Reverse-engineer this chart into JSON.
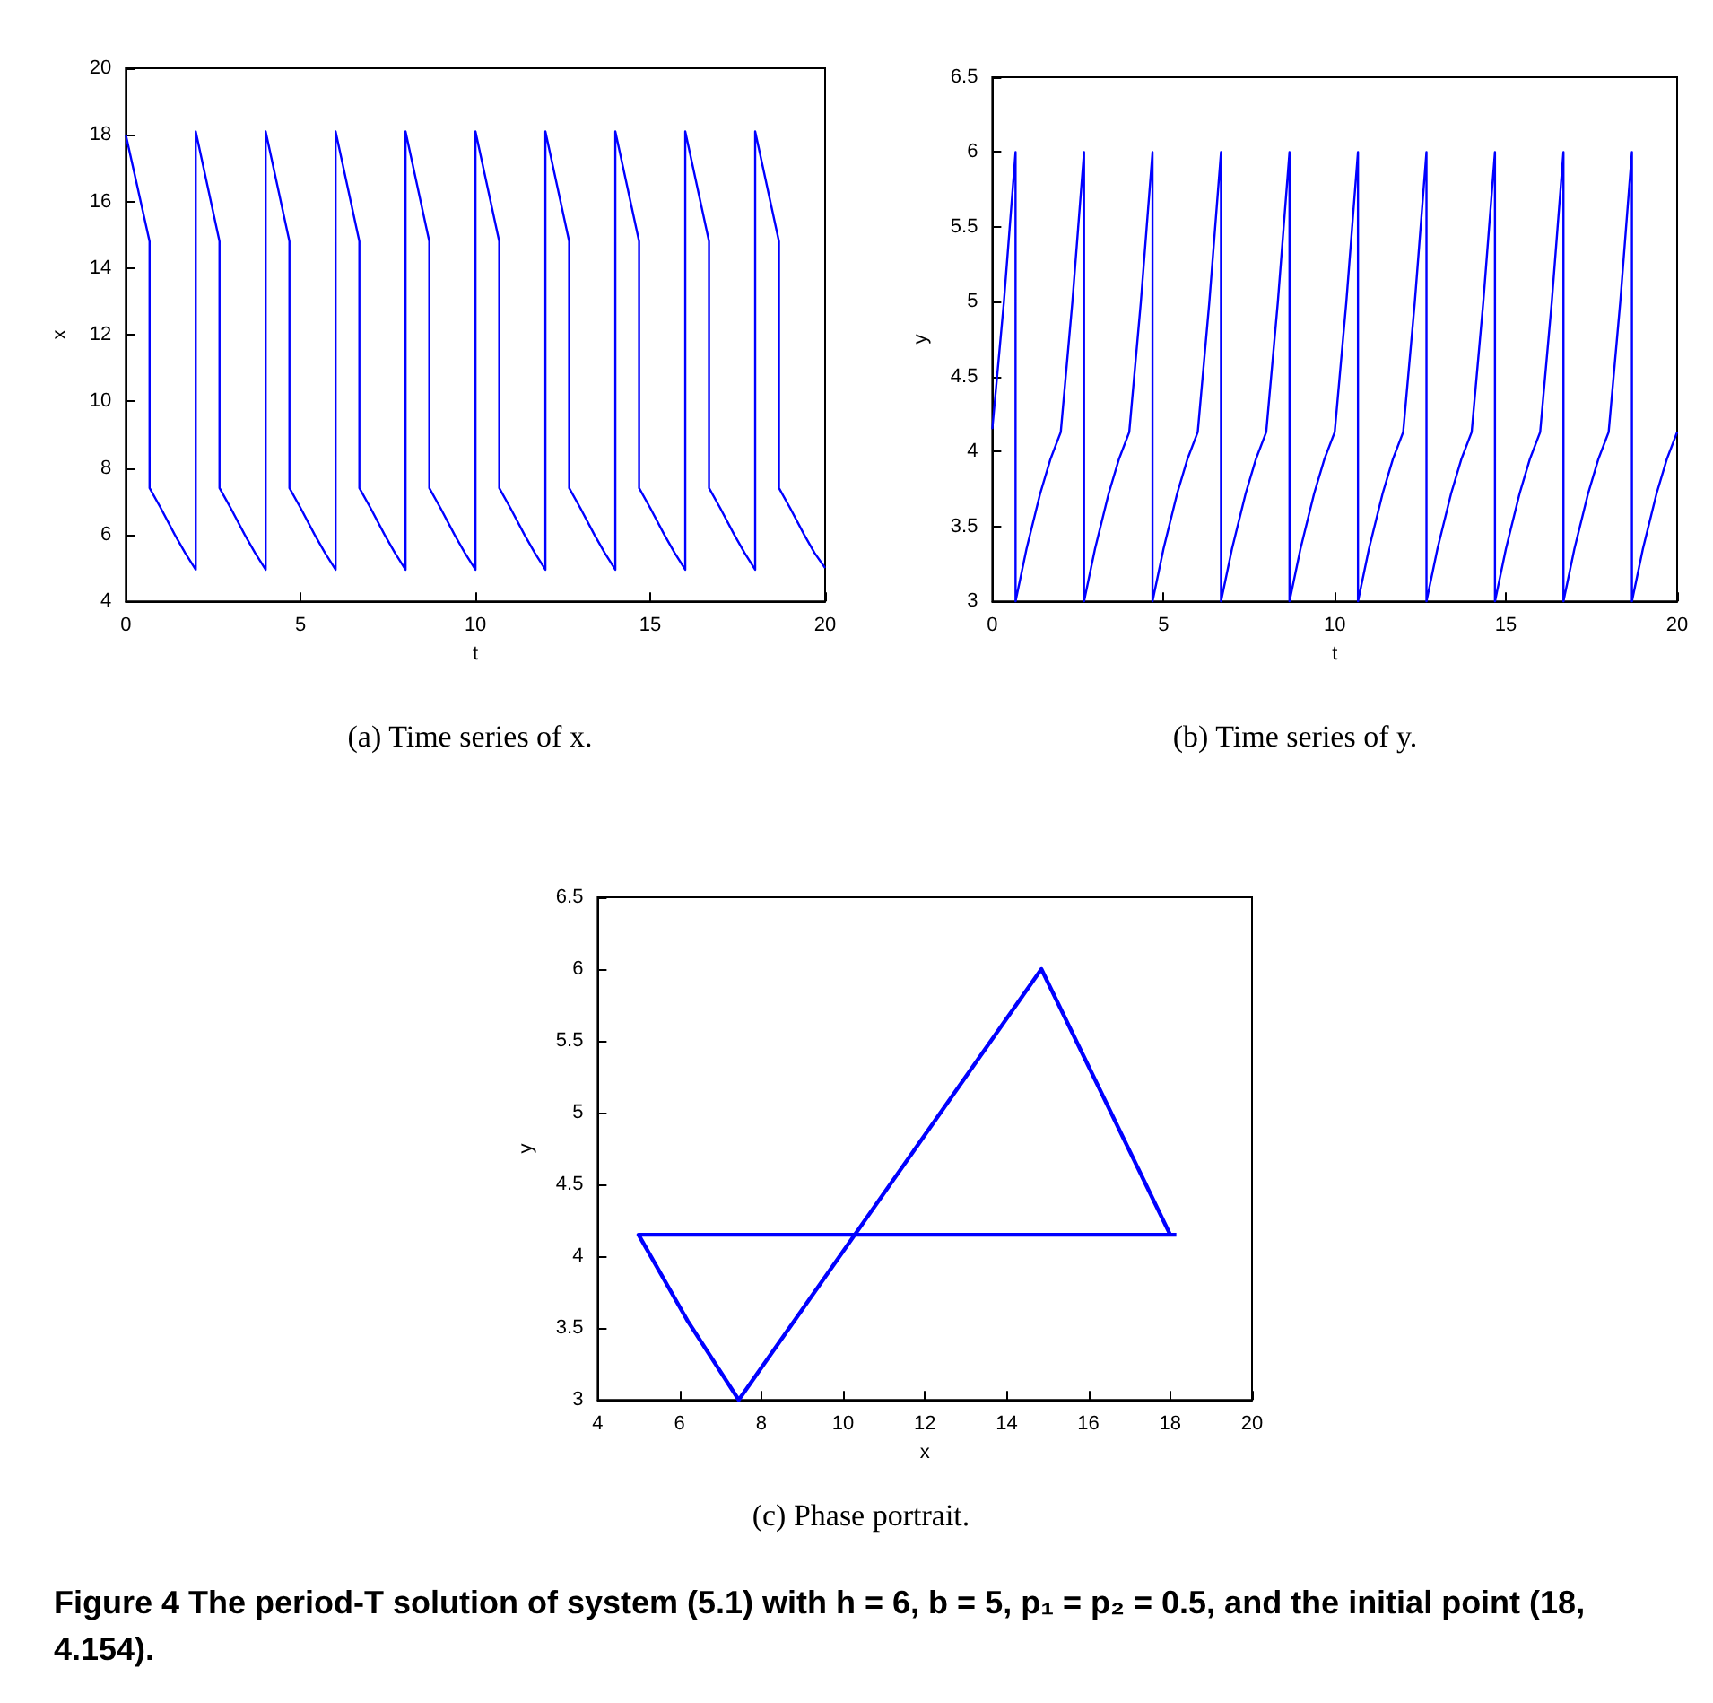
{
  "chart_data": [
    {
      "type": "line",
      "xlabel": "t",
      "ylabel": "x",
      "annotations": [
        "(a) Time series of x."
      ],
      "xlim": [
        0,
        20
      ],
      "xticks": [
        0,
        5,
        10,
        15,
        20
      ],
      "ylim": [
        4,
        20
      ],
      "yticks": [
        4,
        6,
        8,
        10,
        12,
        14,
        16,
        18,
        20
      ],
      "marker": "none",
      "line_style": "solid",
      "x": [
        0,
        0.68,
        0.68,
        1,
        1.4,
        1.7,
        2,
        2,
        2.68,
        2.68,
        3,
        3.4,
        3.7,
        4,
        4,
        4.68,
        4.68,
        5,
        5.4,
        5.7,
        6,
        6,
        6.68,
        6.68,
        7,
        7.4,
        7.7,
        8,
        8,
        8.68,
        8.68,
        9,
        9.4,
        9.7,
        10,
        10,
        10.68,
        10.68,
        11,
        11.4,
        11.7,
        12,
        12,
        12.68,
        12.68,
        13,
        13.4,
        13.7,
        14,
        14,
        14.68,
        14.68,
        15,
        15.4,
        15.7,
        16,
        16,
        16.68,
        16.68,
        17,
        17.4,
        17.7,
        18,
        18,
        18.68,
        18.68,
        19,
        19.4,
        19.7,
        20
      ],
      "series": [
        {
          "color": "#0000ff",
          "values": [
            18,
            14.8,
            7.4,
            6.8,
            6.0,
            5.45,
            4.95,
            18.1,
            14.8,
            7.4,
            6.8,
            6.0,
            5.45,
            4.95,
            18.1,
            14.8,
            7.4,
            6.8,
            6.0,
            5.45,
            4.95,
            18.1,
            14.8,
            7.4,
            6.8,
            6.0,
            5.45,
            4.95,
            18.1,
            14.8,
            7.4,
            6.8,
            6.0,
            5.45,
            4.95,
            18.1,
            14.8,
            7.4,
            6.8,
            6.0,
            5.45,
            4.95,
            18.1,
            14.8,
            7.4,
            6.8,
            6.0,
            5.45,
            4.95,
            18.1,
            14.8,
            7.4,
            6.8,
            6.0,
            5.45,
            4.95,
            18.1,
            14.8,
            7.4,
            6.8,
            6.0,
            5.45,
            4.95,
            18.1,
            14.8,
            7.4,
            6.8,
            6.0,
            5.45,
            5.0
          ]
        }
      ]
    },
    {
      "type": "line",
      "xlabel": "t",
      "ylabel": "y",
      "annotations": [
        "(b) Time series of y."
      ],
      "xlim": [
        0,
        20
      ],
      "xticks": [
        0,
        5,
        10,
        15,
        20
      ],
      "ylim": [
        3,
        6.5
      ],
      "yticks": [
        3,
        3.5,
        4,
        4.5,
        5,
        5.5,
        6,
        6.5
      ],
      "marker": "none",
      "line_style": "solid",
      "x": [
        0,
        0.34,
        0.68,
        0.68,
        1,
        1.4,
        1.7,
        2,
        2.34,
        2.68,
        2.68,
        3,
        3.4,
        3.7,
        4,
        4.34,
        4.68,
        4.68,
        5,
        5.4,
        5.7,
        6,
        6.34,
        6.68,
        6.68,
        7,
        7.4,
        7.7,
        8,
        8.34,
        8.68,
        8.68,
        9,
        9.4,
        9.7,
        10,
        10.34,
        10.68,
        10.68,
        11,
        11.4,
        11.7,
        12,
        12.34,
        12.68,
        12.68,
        13,
        13.4,
        13.7,
        14,
        14.34,
        14.68,
        14.68,
        15,
        15.4,
        15.7,
        16,
        16.34,
        16.68,
        16.68,
        17,
        17.4,
        17.7,
        18,
        18.34,
        18.68,
        18.68,
        19,
        19.4,
        19.7,
        20
      ],
      "series": [
        {
          "color": "#0000ff",
          "values": [
            4.15,
            5,
            6,
            3,
            3.35,
            3.72,
            3.95,
            4.13,
            5,
            6,
            3,
            3.35,
            3.72,
            3.95,
            4.13,
            5,
            6,
            3,
            3.35,
            3.72,
            3.95,
            4.13,
            5,
            6,
            3,
            3.35,
            3.72,
            3.95,
            4.13,
            5,
            6,
            3,
            3.35,
            3.72,
            3.95,
            4.13,
            5,
            6,
            3,
            3.35,
            3.72,
            3.95,
            4.13,
            5,
            6,
            3,
            3.35,
            3.72,
            3.95,
            4.13,
            5,
            6,
            3,
            3.35,
            3.72,
            3.95,
            4.13,
            5,
            6,
            3,
            3.35,
            3.72,
            3.95,
            4.13,
            5,
            6,
            3,
            3.35,
            3.72,
            3.95,
            4.13
          ]
        }
      ]
    },
    {
      "type": "line",
      "xlabel": "x",
      "ylabel": "y",
      "annotations": [
        "(c) Phase portrait.",
        "Figure 4  The period-T solution of system (5.1) with h = 6, b = 5, p₁ = p₂ = 0.5, and the initial point (18, 4.154)."
      ],
      "xlim": [
        4,
        20
      ],
      "xticks": [
        4,
        6,
        8,
        10,
        12,
        14,
        16,
        18,
        20
      ],
      "ylim": [
        3,
        6.5
      ],
      "yticks": [
        3,
        3.5,
        4,
        4.5,
        5,
        5.5,
        6,
        6.5
      ],
      "marker": "none",
      "line_style": "solid",
      "x": [
        18,
        14.85,
        7.45,
        6.2,
        5,
        18.15
      ],
      "series": [
        {
          "color": "#0000ff",
          "values": [
            4.15,
            6,
            3,
            3.55,
            4.15,
            4.15
          ]
        }
      ]
    }
  ]
}
